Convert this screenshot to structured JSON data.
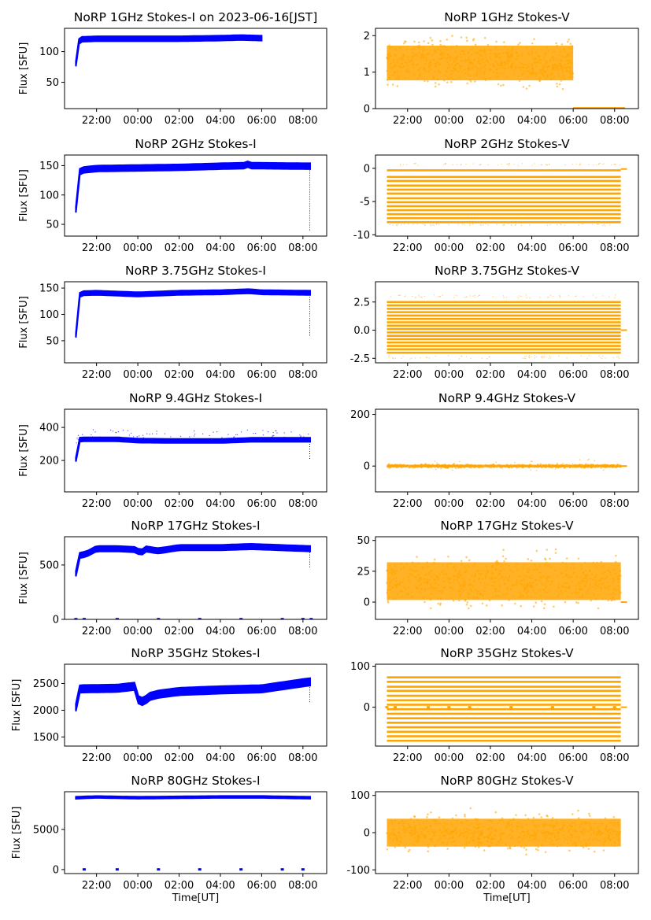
{
  "figure": {
    "colors": {
      "stokes_i": "#0000ff",
      "stokes_v": "#ffa500"
    },
    "shared_xaxis": {
      "label": "Time[UT]",
      "range_hours_from_midnight": [
        -3.55,
        9.15
      ],
      "ticks": [
        {
          "value": -2,
          "label": "22:00"
        },
        {
          "value": 0,
          "label": "00:00"
        },
        {
          "value": 2,
          "label": "02:00"
        },
        {
          "value": 4,
          "label": "04:00"
        },
        {
          "value": 6,
          "label": "06:00"
        },
        {
          "value": 8,
          "label": "08:00"
        }
      ]
    }
  },
  "chart_data": [
    {
      "type": "scatter",
      "title": "NoRP 1GHz Stokes-I on 2023-06-16[JST]",
      "ylabel": "Flux [SFU]",
      "ylim": [
        7,
        138
      ],
      "yticks": [
        50,
        100
      ],
      "series_color": "#0000ff",
      "series": [
        {
          "name": "Stokes-I",
          "kind": "band",
          "start": -3.0,
          "end": 6.0,
          "level": [
            [
              -3.0,
              80
            ],
            [
              -2.95,
              110
            ],
            [
              -2.8,
              120
            ],
            [
              -2,
              121
            ],
            [
              0,
              121
            ],
            [
              2,
              121
            ],
            [
              4,
              122
            ],
            [
              5,
              123
            ],
            [
              6,
              122
            ]
          ],
          "spread": 4,
          "jitter": 0
        }
      ]
    },
    {
      "type": "scatter",
      "title": "NoRP 1GHz Stokes-V",
      "ylabel": "",
      "ylim": [
        0,
        2.2
      ],
      "yticks": [
        0,
        1,
        2
      ],
      "series_color": "#ffa500",
      "series": [
        {
          "name": "Stokes-V",
          "kind": "noise",
          "start": -3.0,
          "end": 6.0,
          "center": 1.25,
          "sigma": 0.28,
          "min": 0.5,
          "max": 2.1
        },
        {
          "name": "after-06:00",
          "kind": "flat",
          "start": 6.0,
          "end": 8.5,
          "value": 0.02
        }
      ]
    },
    {
      "type": "scatter",
      "title": "NoRP 2GHz Stokes-I",
      "ylabel": "Flux [SFU]",
      "ylim": [
        30,
        168
      ],
      "yticks": [
        50,
        100,
        150
      ],
      "series_color": "#0000ff",
      "series": [
        {
          "name": "Stokes-I",
          "kind": "band",
          "start": -3.0,
          "end": 8.35,
          "level": [
            [
              -3.0,
              75
            ],
            [
              -2.95,
              110
            ],
            [
              -2.8,
              142
            ],
            [
              -2,
              145
            ],
            [
              0,
              146
            ],
            [
              2,
              147
            ],
            [
              4,
              149
            ],
            [
              5.3,
              150
            ],
            [
              5.4,
              160
            ],
            [
              5.5,
              150
            ],
            [
              8.3,
              149
            ]
          ],
          "spread": 5,
          "jitter": 0,
          "tail": {
            "at": 8.33,
            "low": 40,
            "high": 150
          }
        }
      ]
    },
    {
      "type": "scatter",
      "title": "NoRP 2GHz Stokes-V",
      "ylabel": "",
      "ylim": [
        -10.2,
        2
      ],
      "yticks": [
        -10,
        -5,
        0
      ],
      "series_color": "#ffa500",
      "series": [
        {
          "name": "Stokes-V",
          "kind": "levels",
          "start": -3.0,
          "end": 8.3,
          "levels": [
            -0.3,
            -1.3,
            -1.9,
            -2.6,
            -3.2,
            -3.8,
            -4.5,
            -5.1,
            -5.7,
            -6.3,
            -6.9,
            -7.5,
            -8.1
          ],
          "sparse": [
            0.6,
            -8.5
          ]
        },
        {
          "name": "baseline",
          "kind": "flat",
          "start": 8.3,
          "end": 8.6,
          "value": -0.1
        }
      ]
    },
    {
      "type": "scatter",
      "title": "NoRP 3.75GHz Stokes-I",
      "ylabel": "Flux [SFU]",
      "ylim": [
        8,
        162
      ],
      "yticks": [
        50,
        100,
        150
      ],
      "series_color": "#0000ff",
      "series": [
        {
          "name": "Stokes-I",
          "kind": "band",
          "start": -3.0,
          "end": 8.35,
          "level": [
            [
              -3.0,
              60
            ],
            [
              -2.95,
              100
            ],
            [
              -2.8,
              140
            ],
            [
              -2,
              141
            ],
            [
              0,
              138
            ],
            [
              2,
              141
            ],
            [
              4,
              142
            ],
            [
              5.4,
              144
            ],
            [
              6,
              142
            ],
            [
              8.3,
              141
            ]
          ],
          "spread": 4,
          "jitter": 0,
          "tail": {
            "at": 8.33,
            "low": 60,
            "high": 140
          }
        }
      ]
    },
    {
      "type": "scatter",
      "title": "NoRP 3.75GHz Stokes-V",
      "ylabel": "",
      "ylim": [
        -2.9,
        4.3
      ],
      "yticks": [
        -2.5,
        0.0,
        2.5
      ],
      "series_color": "#ffa500",
      "series": [
        {
          "name": "Stokes-V",
          "kind": "levels",
          "start": -3.0,
          "end": 8.3,
          "levels": [
            2.5,
            2.2,
            1.9,
            1.6,
            1.3,
            1.0,
            0.7,
            0.4,
            0.1,
            -0.2,
            -0.5,
            -0.8,
            -1.1,
            -1.4,
            -1.7,
            -2.0
          ],
          "sparse": [
            3.0,
            -2.4
          ]
        },
        {
          "name": "baseline",
          "kind": "flat",
          "start": 8.3,
          "end": 8.6,
          "value": 0.0
        }
      ]
    },
    {
      "type": "scatter",
      "title": "NoRP 9.4GHz Stokes-I",
      "ylabel": "Flux [SFU]",
      "ylim": [
        10,
        510
      ],
      "yticks": [
        200,
        400
      ],
      "series_color": "#0000ff",
      "series": [
        {
          "name": "Stokes-I",
          "kind": "band",
          "start": -3.0,
          "end": 8.35,
          "level": [
            [
              -3.0,
              205
            ],
            [
              -2.95,
              300
            ],
            [
              -2.8,
              328
            ],
            [
              -1,
              328
            ],
            [
              0,
              320
            ],
            [
              2,
              318
            ],
            [
              4,
              318
            ],
            [
              5.5,
              325
            ],
            [
              8.3,
              325
            ]
          ],
          "spread": 12,
          "jitter": 60,
          "tail": {
            "at": 8.33,
            "low": 210,
            "high": 330
          }
        }
      ]
    },
    {
      "type": "scatter",
      "title": "NoRP 9.4GHz Stokes-V",
      "ylabel": "",
      "ylim": [
        -100,
        220
      ],
      "yticks": [
        0,
        200
      ],
      "series_color": "#ffa500",
      "series": [
        {
          "name": "Stokes-V",
          "kind": "noise",
          "start": -3.0,
          "end": 8.3,
          "center": 0,
          "sigma": 3,
          "min": -30,
          "max": 40,
          "spikes": 45
        },
        {
          "name": "baseline",
          "kind": "flat",
          "start": 8.3,
          "end": 8.6,
          "value": 0
        }
      ]
    },
    {
      "type": "scatter",
      "title": "NoRP 17GHz Stokes-I",
      "ylabel": "Flux [SFU]",
      "ylim": [
        0,
        760
      ],
      "yticks": [
        0,
        500
      ],
      "series_color": "#0000ff",
      "series": [
        {
          "name": "Stokes-I",
          "kind": "band",
          "start": -3.0,
          "end": 8.35,
          "level": [
            [
              -3.0,
              420
            ],
            [
              -2.95,
              560
            ],
            [
              -2.8,
              590
            ],
            [
              -2.5,
              600
            ],
            [
              -2,
              650
            ],
            [
              -1,
              650
            ],
            [
              0,
              640
            ],
            [
              0.1,
              580
            ],
            [
              0.3,
              650
            ],
            [
              1,
              630
            ],
            [
              2,
              660
            ],
            [
              4,
              660
            ],
            [
              5.5,
              670
            ],
            [
              8.3,
              650
            ]
          ],
          "spread": 25,
          "jitter": 0,
          "tail": {
            "at": 8.33,
            "low": 480,
            "high": 650
          }
        },
        {
          "name": "calibration",
          "kind": "dots",
          "at": [
            -3.0,
            -2.6,
            -1.0,
            1.0,
            3.0,
            5.0,
            7.0,
            8.0,
            8.4
          ],
          "value": 2
        }
      ]
    },
    {
      "type": "scatter",
      "title": "NoRP 17GHz Stokes-V",
      "ylabel": "",
      "ylim": [
        -14,
        53
      ],
      "yticks": [
        0,
        25,
        50
      ],
      "series_color": "#ffa500",
      "series": [
        {
          "name": "Stokes-V",
          "kind": "noise",
          "start": -3.0,
          "end": 8.3,
          "center": 17,
          "sigma": 9,
          "min": -5,
          "max": 45
        },
        {
          "name": "baseline",
          "kind": "flat",
          "start": 8.3,
          "end": 8.6,
          "value": 0
        }
      ]
    },
    {
      "type": "scatter",
      "title": "NoRP 35GHz Stokes-I",
      "ylabel": "Flux [SFU]",
      "ylim": [
        1330,
        2860
      ],
      "yticks": [
        1500,
        2000,
        2500
      ],
      "series_color": "#0000ff",
      "series": [
        {
          "name": "Stokes-I",
          "kind": "band",
          "start": -3.0,
          "end": 8.35,
          "level": [
            [
              -3.0,
              2050
            ],
            [
              -2.95,
              2350
            ],
            [
              -2.8,
              2400
            ],
            [
              -1,
              2410
            ],
            [
              -0.1,
              2450
            ],
            [
              0,
              2200
            ],
            [
              0.3,
              2150
            ],
            [
              0.5,
              2250
            ],
            [
              1,
              2300
            ],
            [
              2,
              2350
            ],
            [
              4,
              2380
            ],
            [
              6,
              2400
            ],
            [
              8.3,
              2530
            ]
          ],
          "spread": 70,
          "jitter": 0,
          "tail": {
            "at": 8.33,
            "low": 2150,
            "high": 2550
          }
        }
      ]
    },
    {
      "type": "scatter",
      "title": "NoRP 35GHz Stokes-V",
      "ylabel": "",
      "ylim": [
        -95,
        105
      ],
      "yticks": [
        0,
        100
      ],
      "series_color": "#ffa500",
      "series": [
        {
          "name": "Stokes-V",
          "kind": "levels",
          "start": -3.0,
          "end": 8.3,
          "levels": [
            73,
            62,
            50,
            40,
            28,
            17,
            6,
            -5,
            -16,
            -27,
            -38,
            -49,
            -60,
            -71,
            -82
          ],
          "sparse": []
        },
        {
          "name": "baseline",
          "kind": "flat",
          "start": 8.3,
          "end": 8.6,
          "value": 0
        },
        {
          "name": "calibration",
          "kind": "dots",
          "at": [
            -3.0,
            -2.6,
            -1.0,
            0.0,
            1.0,
            3.0,
            5.0,
            7.0,
            8.0
          ],
          "value": 0
        }
      ]
    },
    {
      "type": "scatter",
      "title": "NoRP 80GHz Stokes-I",
      "ylabel": "Flux [SFU]",
      "ylim": [
        -500,
        9700
      ],
      "yticks": [
        0,
        5000
      ],
      "series_color": "#0000ff",
      "series": [
        {
          "name": "Stokes-I",
          "kind": "band",
          "start": -3.0,
          "end": 8.35,
          "level": [
            [
              -3.0,
              8950
            ],
            [
              -2,
              9050
            ],
            [
              0,
              8950
            ],
            [
              2,
              9000
            ],
            [
              4,
              9050
            ],
            [
              6,
              9050
            ],
            [
              8.3,
              8950
            ]
          ],
          "spread": 120,
          "jitter": 0
        },
        {
          "name": "calibration",
          "kind": "dots",
          "at": [
            -2.6,
            -1.0,
            1.0,
            3.0,
            5.0,
            7.0,
            8.0
          ],
          "value": 20
        }
      ]
    },
    {
      "type": "scatter",
      "title": "NoRP 80GHz Stokes-V",
      "ylabel": "",
      "ylim": [
        -110,
        110
      ],
      "yticks": [
        -100,
        0,
        100
      ],
      "series_color": "#ffa500",
      "series": [
        {
          "name": "Stokes-V",
          "kind": "noise",
          "start": -3.0,
          "end": 8.3,
          "center": 0,
          "sigma": 22,
          "min": -95,
          "max": 95
        }
      ]
    }
  ]
}
